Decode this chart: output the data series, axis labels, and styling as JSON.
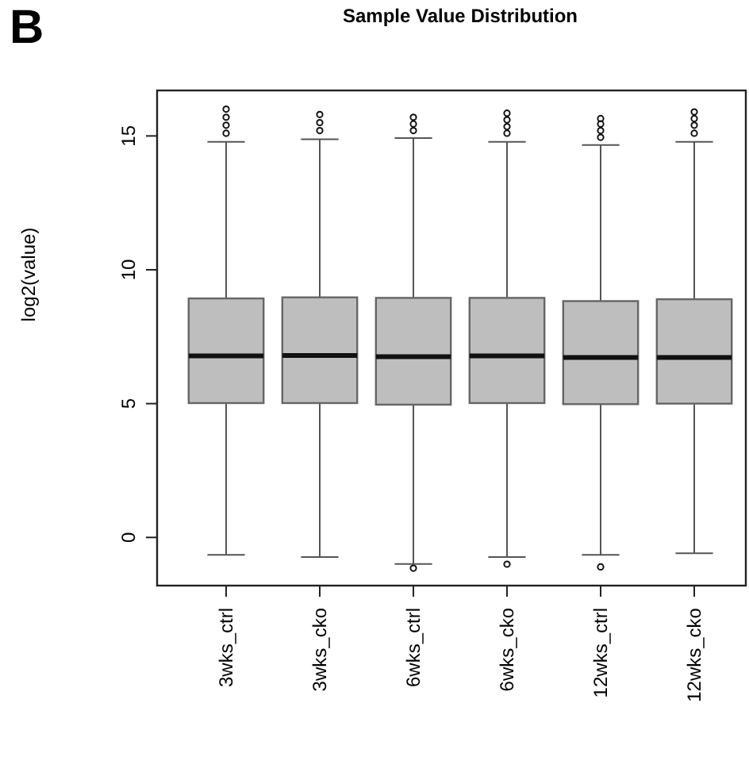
{
  "chart_data": {
    "type": "box",
    "title": "Sample Value Distribution",
    "ylabel": "log2(value)",
    "annotations": [
      "B"
    ],
    "categories": [
      "3wks_ctrl",
      "3wks_cko",
      "6wks_ctrl",
      "6wks_cko",
      "12wks_ctrl",
      "12wks_cko"
    ],
    "color": "#bebebe",
    "ylim": [
      -1.8,
      16.7
    ],
    "yticks": [
      0,
      5,
      10,
      15
    ],
    "grid": false,
    "boxes": [
      {
        "low": -0.65,
        "q1": 5.02,
        "median": 6.78,
        "q3": 8.93,
        "high": 14.78,
        "outliers": [
          15.1,
          15.4,
          15.7,
          16
        ]
      },
      {
        "low": -0.73,
        "q1": 5.02,
        "median": 6.8,
        "q3": 8.97,
        "high": 14.88,
        "outliers": [
          15.2,
          15.5,
          15.8
        ]
      },
      {
        "low": -0.99,
        "q1": 4.96,
        "median": 6.75,
        "q3": 8.95,
        "high": 14.92,
        "outliers": [
          -1.15,
          15.2,
          15.45,
          15.7
        ]
      },
      {
        "low": -0.73,
        "q1": 5.02,
        "median": 6.78,
        "q3": 8.95,
        "high": 14.78,
        "outliers": [
          -1.0,
          15.1,
          15.35,
          15.6,
          15.85
        ]
      },
      {
        "low": -0.65,
        "q1": 4.98,
        "median": 6.72,
        "q3": 8.83,
        "high": 14.66,
        "outliers": [
          -1.1,
          14.95,
          15.2,
          15.45,
          15.65
        ]
      },
      {
        "low": -0.59,
        "q1": 5.0,
        "median": 6.72,
        "q3": 8.9,
        "high": 14.78,
        "outliers": [
          15.1,
          15.4,
          15.65,
          15.9
        ]
      }
    ]
  }
}
